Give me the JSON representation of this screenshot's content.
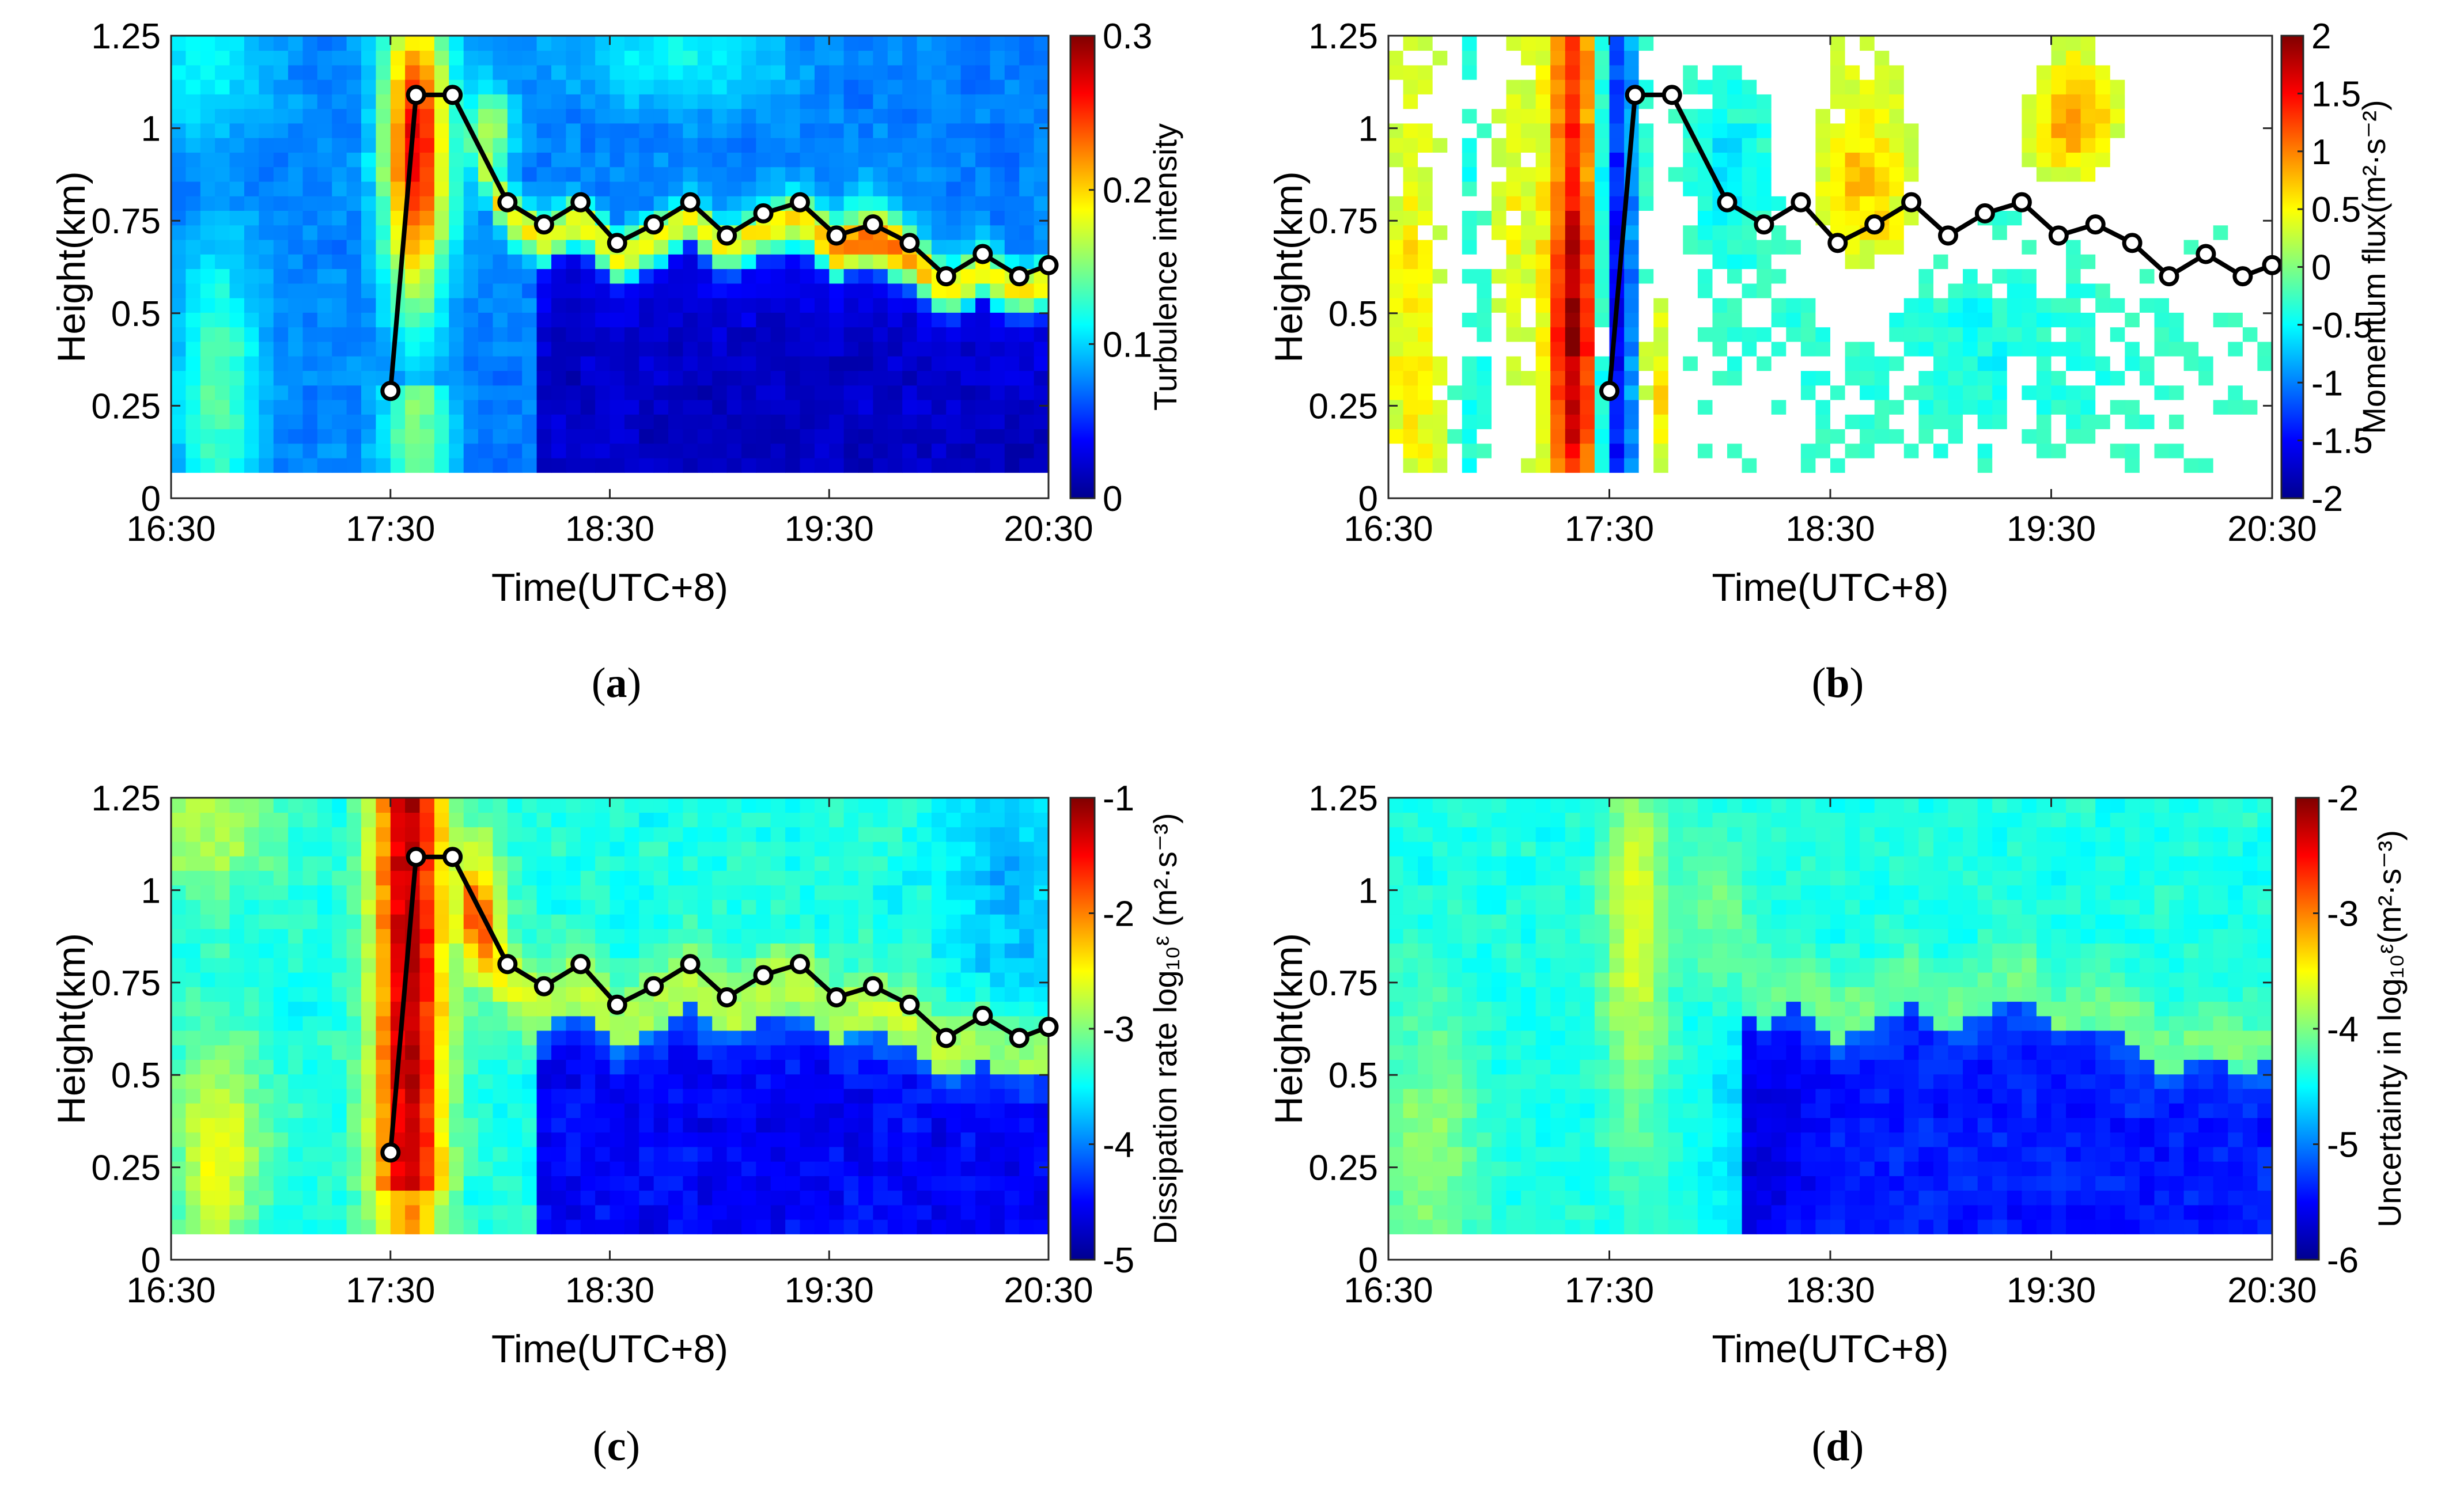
{
  "figure": {
    "colormap": [
      "#00008f",
      "#0000ff",
      "#0080ff",
      "#00ffff",
      "#80ff80",
      "#ffff00",
      "#ff8000",
      "#ff0000",
      "#800000"
    ]
  },
  "chart_data": [
    {
      "id": "a",
      "type": "heatmap",
      "caption": "a",
      "xlabel": "Time(UTC+8)",
      "ylabel": "Height(km)",
      "xticks": [
        "16:30",
        "17:30",
        "18:30",
        "19:30",
        "20:30"
      ],
      "xlim_min": [
        990,
        1230
      ],
      "yticks": [
        "0",
        "0.25",
        "0.5",
        "0.75",
        "1",
        "1.25"
      ],
      "ylim": [
        0,
        1.25
      ],
      "data_ylim": [
        0.07,
        1.25
      ],
      "colorbar": {
        "label": "Turbulence intensity",
        "ticks": [
          "0",
          "0.1",
          "0.2",
          "0.3"
        ],
        "range": [
          0,
          0.3
        ]
      },
      "field": "ti",
      "line_visible": true
    },
    {
      "id": "b",
      "type": "heatmap",
      "caption": "b",
      "xlabel": "Time(UTC+8)",
      "ylabel": "Height(km)",
      "xticks": [
        "16:30",
        "17:30",
        "18:30",
        "19:30",
        "20:30"
      ],
      "xlim_min": [
        990,
        1230
      ],
      "yticks": [
        "0",
        "0.25",
        "0.5",
        "0.75",
        "1",
        "1.25"
      ],
      "ylim": [
        0,
        1.25
      ],
      "data_ylim": [
        0.07,
        1.25
      ],
      "colorbar": {
        "label": "Momentum flux(m²·s⁻²)",
        "ticks": [
          "-2",
          "-1.5",
          "-1",
          "-0.5",
          "0",
          "0.5",
          "1",
          "1.5",
          "2"
        ],
        "range": [
          -2,
          2
        ]
      },
      "field": "flux",
      "line_visible": true
    },
    {
      "id": "c",
      "type": "heatmap",
      "caption": "c",
      "xlabel": "Time(UTC+8)",
      "ylabel": "Height(km)",
      "xticks": [
        "16:30",
        "17:30",
        "18:30",
        "19:30",
        "20:30"
      ],
      "xlim_min": [
        990,
        1230
      ],
      "yticks": [
        "0",
        "0.25",
        "0.5",
        "0.75",
        "1",
        "1.25"
      ],
      "ylim": [
        0,
        1.25
      ],
      "data_ylim": [
        0.07,
        1.25
      ],
      "colorbar": {
        "label": "Dissipation rate log₁₀ᵋ (m²·s⁻³)",
        "ticks": [
          "-5",
          "-4",
          "-3",
          "-2",
          "-1"
        ],
        "range": [
          -5,
          -1
        ]
      },
      "field": "diss",
      "line_visible": true
    },
    {
      "id": "d",
      "type": "heatmap",
      "caption": "d",
      "xlabel": "Time(UTC+8)",
      "ylabel": "Height(km)",
      "xticks": [
        "16:30",
        "17:30",
        "18:30",
        "19:30",
        "20:30"
      ],
      "xlim_min": [
        990,
        1230
      ],
      "yticks": [
        "0",
        "0.25",
        "0.5",
        "0.75",
        "1",
        "1.25"
      ],
      "ylim": [
        0,
        1.25
      ],
      "data_ylim": [
        0.07,
        1.25
      ],
      "colorbar": {
        "label": "Uncertainty in log₁₀ᵋ(m²·s⁻³)",
        "ticks": [
          "-6",
          "-5",
          "-4",
          "-3",
          "-2"
        ],
        "range": [
          -6,
          -2
        ]
      },
      "field": "unc",
      "line_visible": false
    }
  ],
  "boundary_layer_height": {
    "time_min": [
      1050,
      1057,
      1067,
      1082,
      1092,
      1102,
      1112,
      1122,
      1132,
      1142,
      1152,
      1162,
      1172,
      1182,
      1192,
      1202,
      1212,
      1222,
      1230
    ],
    "height_km": [
      0.29,
      1.09,
      1.09,
      0.8,
      0.74,
      0.8,
      0.69,
      0.74,
      0.8,
      0.71,
      0.77,
      0.8,
      0.71,
      0.74,
      0.69,
      0.6,
      0.66,
      0.6,
      0.63
    ]
  }
}
